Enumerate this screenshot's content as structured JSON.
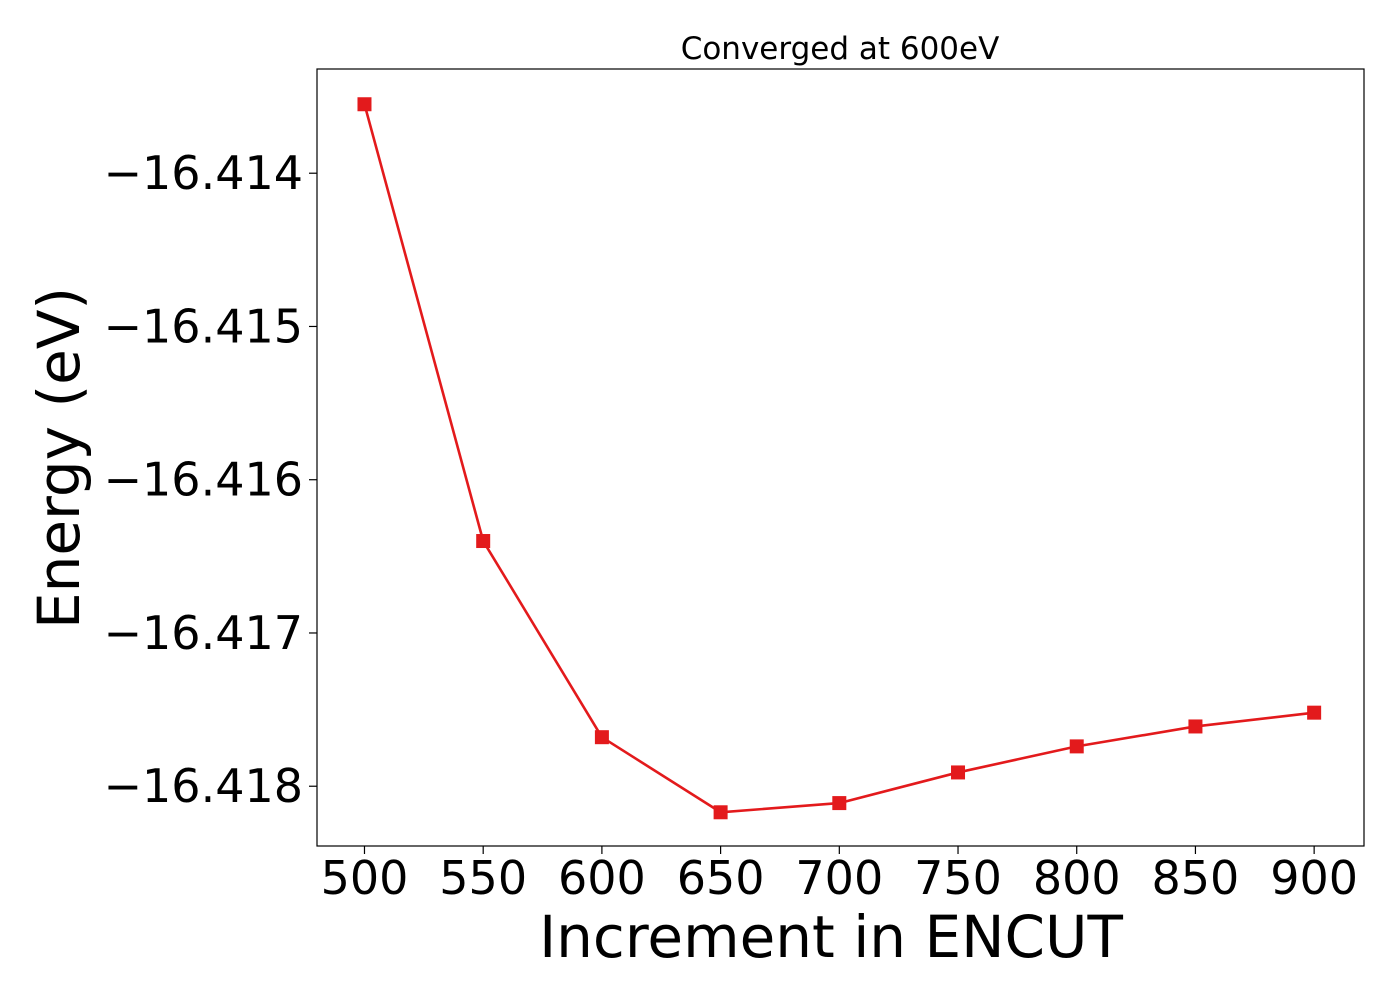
{
  "chart_data": {
    "type": "line",
    "title": "Converged at 600eV",
    "xlabel": "Increment in ENCUT",
    "ylabel": "Energy (eV)",
    "x": [
      500,
      550,
      600,
      650,
      700,
      750,
      800,
      850,
      900
    ],
    "series": [
      {
        "values": [
          -16.41355,
          -16.4164,
          -16.41768,
          -16.41817,
          -16.41811,
          -16.41791,
          -16.41774,
          -16.41761,
          -16.41752
        ],
        "color": "#e31a1c",
        "marker": "square"
      }
    ],
    "xticks": [
      500,
      550,
      600,
      650,
      700,
      750,
      800,
      850,
      900
    ],
    "xtick_labels": [
      "500",
      "550",
      "600",
      "650",
      "700",
      "750",
      "800",
      "850",
      "900"
    ],
    "yticks": [
      -16.414,
      -16.415,
      -16.416,
      -16.417,
      -16.418
    ],
    "ytick_labels": [
      "−16.414",
      "−16.415",
      "−16.416",
      "−16.417",
      "−16.418"
    ],
    "xlim": [
      480,
      921
    ],
    "ylim": [
      -16.41839,
      -16.41332
    ],
    "grid": false,
    "legend": "none"
  }
}
